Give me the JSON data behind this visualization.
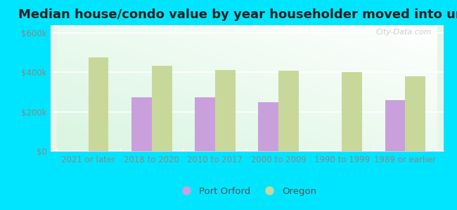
{
  "title": "Median house/condo value by year householder moved into unit",
  "categories": [
    "2021 or later",
    "2018 to 2020",
    "2010 to 2017",
    "2000 to 2009",
    "1990 to 1999",
    "1989 or earlier"
  ],
  "port_orford": [
    0,
    275000,
    275000,
    250000,
    0,
    258000
  ],
  "oregon": [
    478000,
    432000,
    412000,
    408000,
    403000,
    382000
  ],
  "port_orford_color": "#c9a0dc",
  "oregon_color": "#c8d89a",
  "background_outer": "#00e5ff",
  "ylabel_ticks": [
    "$0",
    "$200k",
    "$400k",
    "$600k"
  ],
  "ytick_values": [
    0,
    200000,
    400000,
    600000
  ],
  "ylim": [
    0,
    640000
  ],
  "bar_width": 0.32,
  "legend_labels": [
    "Port Orford",
    "Oregon"
  ],
  "watermark": "City-Data.com",
  "title_fontsize": 13,
  "tick_fontsize": 8.5,
  "legend_fontsize": 9.5
}
